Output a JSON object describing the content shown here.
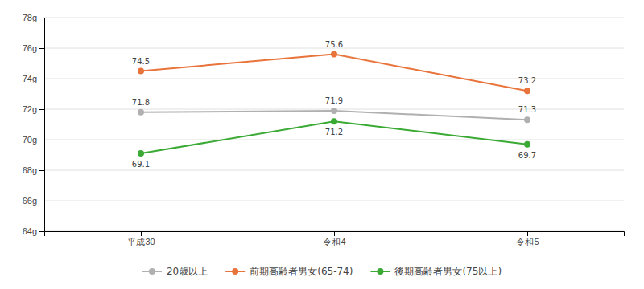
{
  "chart_data": {
    "type": "line",
    "categories": [
      "平成30",
      "令和4",
      "令和5"
    ],
    "series": [
      {
        "name": "20歳以上",
        "color": "#b0b0b0",
        "marker": "circle",
        "values": [
          71.8,
          71.9,
          71.3
        ]
      },
      {
        "name": "前期高齢者男女(65-74)",
        "color": "#e8743b",
        "marker": "circle",
        "values": [
          74.5,
          75.6,
          73.2
        ]
      },
      {
        "name": "後期高齢者男女(75以上)",
        "color": "#3aaa35",
        "marker": "circle",
        "values": [
          69.1,
          71.2,
          69.7
        ]
      }
    ],
    "ylim": [
      64,
      78
    ],
    "yticks": [
      {
        "value": 64,
        "label": "64g"
      },
      {
        "value": 66,
        "label": "66g"
      },
      {
        "value": 68,
        "label": "68g"
      },
      {
        "value": 70,
        "label": "70g"
      },
      {
        "value": 72,
        "label": "72g"
      },
      {
        "value": 74,
        "label": "74g"
      },
      {
        "value": 76,
        "label": "76g"
      },
      {
        "value": 78,
        "label": "78g"
      }
    ],
    "grid": true,
    "legend": "bottom",
    "data_labels": true
  }
}
